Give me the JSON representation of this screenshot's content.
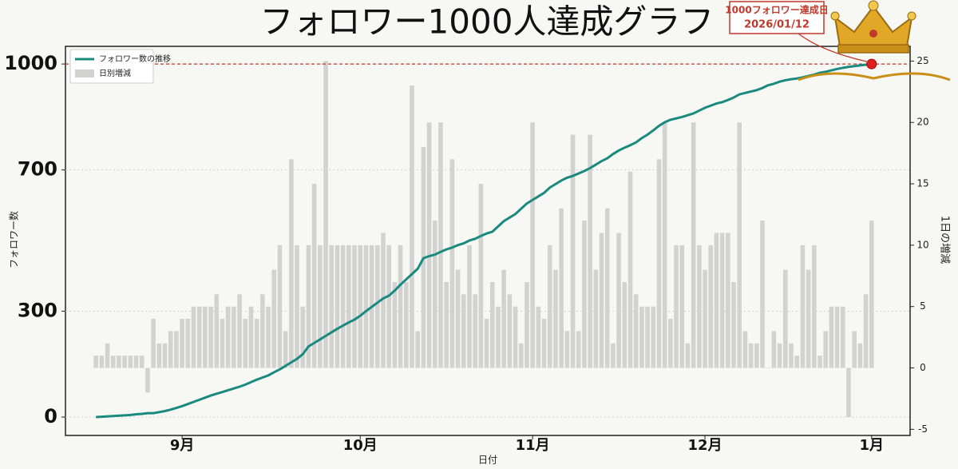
{
  "chart_data": {
    "type": "bar-line",
    "title": "フォロワー1000人達成グラフ",
    "x_label": "日付",
    "y_label": "フォロワー数",
    "y2_label": "1日の増減",
    "annotation": [
      "1000フォロワー達成日",
      "2026/01/12"
    ],
    "hline": {
      "value": 1000,
      "color": "#c0392b"
    },
    "legend": "upper left",
    "grid": true,
    "x": [
      0,
      1,
      2,
      3,
      4,
      5,
      6,
      7,
      8,
      9,
      10,
      11,
      12,
      13,
      14,
      15,
      16,
      17,
      18,
      19,
      20,
      21,
      22,
      23,
      24,
      25,
      26,
      27,
      28,
      29,
      30,
      31,
      32,
      33,
      34,
      35,
      36,
      37,
      38,
      39,
      40,
      41,
      42,
      43,
      44,
      45,
      46,
      47,
      48,
      49,
      50,
      51,
      52,
      53,
      54,
      55,
      56,
      57,
      58,
      59,
      60,
      61,
      62,
      63,
      64,
      65,
      66,
      67,
      68,
      69,
      70,
      71,
      72,
      73,
      74,
      75,
      76,
      77,
      78,
      79,
      80,
      81,
      82,
      83,
      84,
      85,
      86,
      87,
      88,
      89,
      90,
      91,
      92,
      93,
      94,
      95,
      96,
      97,
      98,
      99,
      100,
      101,
      102,
      103,
      104,
      105,
      106,
      107,
      108,
      109,
      110,
      111,
      112,
      113,
      114,
      115,
      116,
      117,
      118,
      119,
      120,
      121,
      122,
      123,
      124,
      125,
      126,
      127,
      128,
      129,
      130,
      131,
      132,
      133,
      134,
      135
    ],
    "xlim": [
      -5.3,
      141.7
    ],
    "xticks": [
      {
        "value": 15,
        "label": "9月"
      },
      {
        "value": 46,
        "label": "10月"
      },
      {
        "value": 76,
        "label": "11月"
      },
      {
        "value": 106,
        "label": "12月"
      },
      {
        "value": 135,
        "label": "1月"
      }
    ],
    "ylim": [
      -52,
      1050
    ],
    "yticks": [
      0,
      300,
      700,
      1000
    ],
    "y2lim": [
      -5.5,
      26.2
    ],
    "y2ticks": [
      -5,
      0,
      5,
      10,
      15,
      20,
      25
    ],
    "series": [
      {
        "name": "フォロワー数の推移",
        "color": "#1a8a7e",
        "type": "line",
        "values": [
          0,
          1,
          2,
          3,
          4,
          5,
          6,
          8,
          9,
          11,
          11,
          14,
          17,
          21,
          26,
          31,
          37,
          43,
          49,
          55,
          61,
          66,
          71,
          76,
          81,
          86,
          92,
          99,
          106,
          112,
          118,
          127,
          135,
          145,
          155,
          165,
          178,
          200,
          210,
          220,
          230,
          240,
          250,
          259,
          268,
          276,
          287,
          300,
          312,
          324,
          336,
          344,
          358,
          375,
          390,
          405,
          420,
          450,
          456,
          460,
          468,
          475,
          480,
          487,
          492,
          500,
          505,
          513,
          520,
          525,
          540,
          555,
          565,
          575,
          590,
          605,
          615,
          625,
          635,
          650,
          660,
          670,
          678,
          683,
          690,
          697,
          705,
          715,
          725,
          733,
          745,
          755,
          763,
          770,
          778,
          790,
          800,
          812,
          825,
          835,
          842,
          846,
          850,
          855,
          860,
          868,
          876,
          882,
          888,
          892,
          898,
          905,
          914,
          918,
          922,
          926,
          932,
          940,
          944,
          950,
          954,
          957,
          959,
          962,
          966,
          970,
          975,
          978,
          982,
          986,
          989,
          992,
          994,
          996,
          998,
          1000
        ]
      },
      {
        "name": "日別増減",
        "color": "#d2d2d0",
        "type": "bar",
        "axis": "y2",
        "values": [
          1,
          1,
          2,
          1,
          1,
          1,
          1,
          1,
          1,
          -2,
          4,
          2,
          2,
          3,
          3,
          4,
          4,
          5,
          5,
          5,
          5,
          6,
          4,
          5,
          5,
          6,
          4,
          5,
          4,
          6,
          5,
          8,
          10,
          3,
          17,
          10,
          5,
          10,
          15,
          10,
          25,
          10,
          10,
          10,
          10,
          10,
          10,
          10,
          10,
          10,
          11,
          10,
          7,
          10,
          7,
          23,
          3,
          18,
          20,
          12,
          20,
          7,
          17,
          8,
          6,
          10,
          6,
          15,
          4,
          7,
          5,
          8,
          6,
          5,
          2,
          7,
          20,
          5,
          4,
          10,
          8,
          13,
          3,
          19,
          3,
          12,
          19,
          8,
          11,
          13,
          2,
          11,
          7,
          16,
          6,
          5,
          5,
          5,
          17,
          20,
          4,
          10,
          10,
          2,
          20,
          10,
          8,
          10,
          11,
          11,
          11,
          7,
          20,
          3,
          2,
          2,
          12,
          0,
          3,
          2,
          8,
          2,
          1,
          10,
          8,
          10,
          1,
          3,
          5,
          5,
          5,
          -4,
          3,
          2,
          6,
          12
        ]
      }
    ]
  }
}
